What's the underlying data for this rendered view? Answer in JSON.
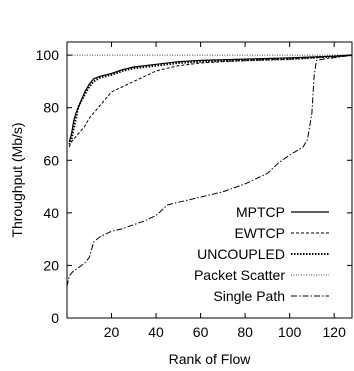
{
  "chart_data": {
    "type": "line",
    "xlabel": "Rank of Flow",
    "ylabel": "Throughput (Mb/s)",
    "xlim": [
      0,
      128
    ],
    "ylim": [
      0,
      105
    ],
    "xticks": [
      20,
      40,
      60,
      80,
      100,
      120
    ],
    "yticks": [
      0,
      20,
      40,
      60,
      80,
      100
    ],
    "grid": false,
    "legend_position": "bottom-right",
    "series": [
      {
        "name": "MPTCP",
        "style": "solid",
        "x": [
          1,
          2,
          3,
          4,
          5,
          6,
          8,
          10,
          12,
          15,
          20,
          25,
          30,
          40,
          50,
          60,
          80,
          100,
          110,
          120,
          128
        ],
        "y": [
          67,
          70,
          75,
          78,
          80,
          82,
          86,
          89,
          91,
          92,
          93,
          94.5,
          95.5,
          96.5,
          97.5,
          98,
          98.5,
          99,
          99.3,
          99.6,
          100
        ]
      },
      {
        "name": "EWTCP",
        "style": "dashed",
        "x": [
          1,
          2,
          4,
          6,
          8,
          10,
          12,
          15,
          18,
          20,
          25,
          30,
          35,
          40,
          50,
          60,
          80,
          100,
          110,
          120,
          128
        ],
        "y": [
          65,
          67,
          69,
          71,
          73,
          76,
          78,
          81,
          84,
          86,
          88,
          90,
          92,
          94,
          96,
          97,
          98,
          98.5,
          99,
          99.5,
          100
        ]
      },
      {
        "name": "UNCOUPLED",
        "style": "dotted",
        "x": [
          1,
          2,
          3,
          4,
          5,
          6,
          8,
          10,
          12,
          15,
          20,
          25,
          30,
          40,
          50,
          60,
          80,
          100,
          110,
          120,
          128
        ],
        "y": [
          66,
          68,
          72,
          76,
          80,
          82,
          85,
          88,
          90,
          91.5,
          92.5,
          94,
          95,
          96,
          97,
          97.5,
          98,
          98.5,
          99,
          99.5,
          100
        ]
      },
      {
        "name": "Packet Scatter",
        "style": "fine-dotted",
        "x": [
          0,
          128
        ],
        "y": [
          100,
          100
        ]
      },
      {
        "name": "Single Path",
        "style": "dash-dot",
        "x": [
          0,
          1,
          3,
          5,
          8,
          10,
          12,
          15,
          20,
          25,
          30,
          35,
          40,
          45,
          50,
          60,
          70,
          80,
          90,
          95,
          100,
          102,
          104,
          106,
          108,
          110,
          111,
          112,
          115,
          120,
          128
        ],
        "y": [
          12,
          16,
          18,
          19,
          21,
          23,
          29,
          31,
          33,
          34,
          35.5,
          37,
          39,
          43,
          44,
          46,
          48,
          51,
          55,
          59,
          62,
          63,
          64,
          65,
          68,
          78,
          92,
          98,
          98.5,
          99,
          100
        ]
      }
    ]
  }
}
